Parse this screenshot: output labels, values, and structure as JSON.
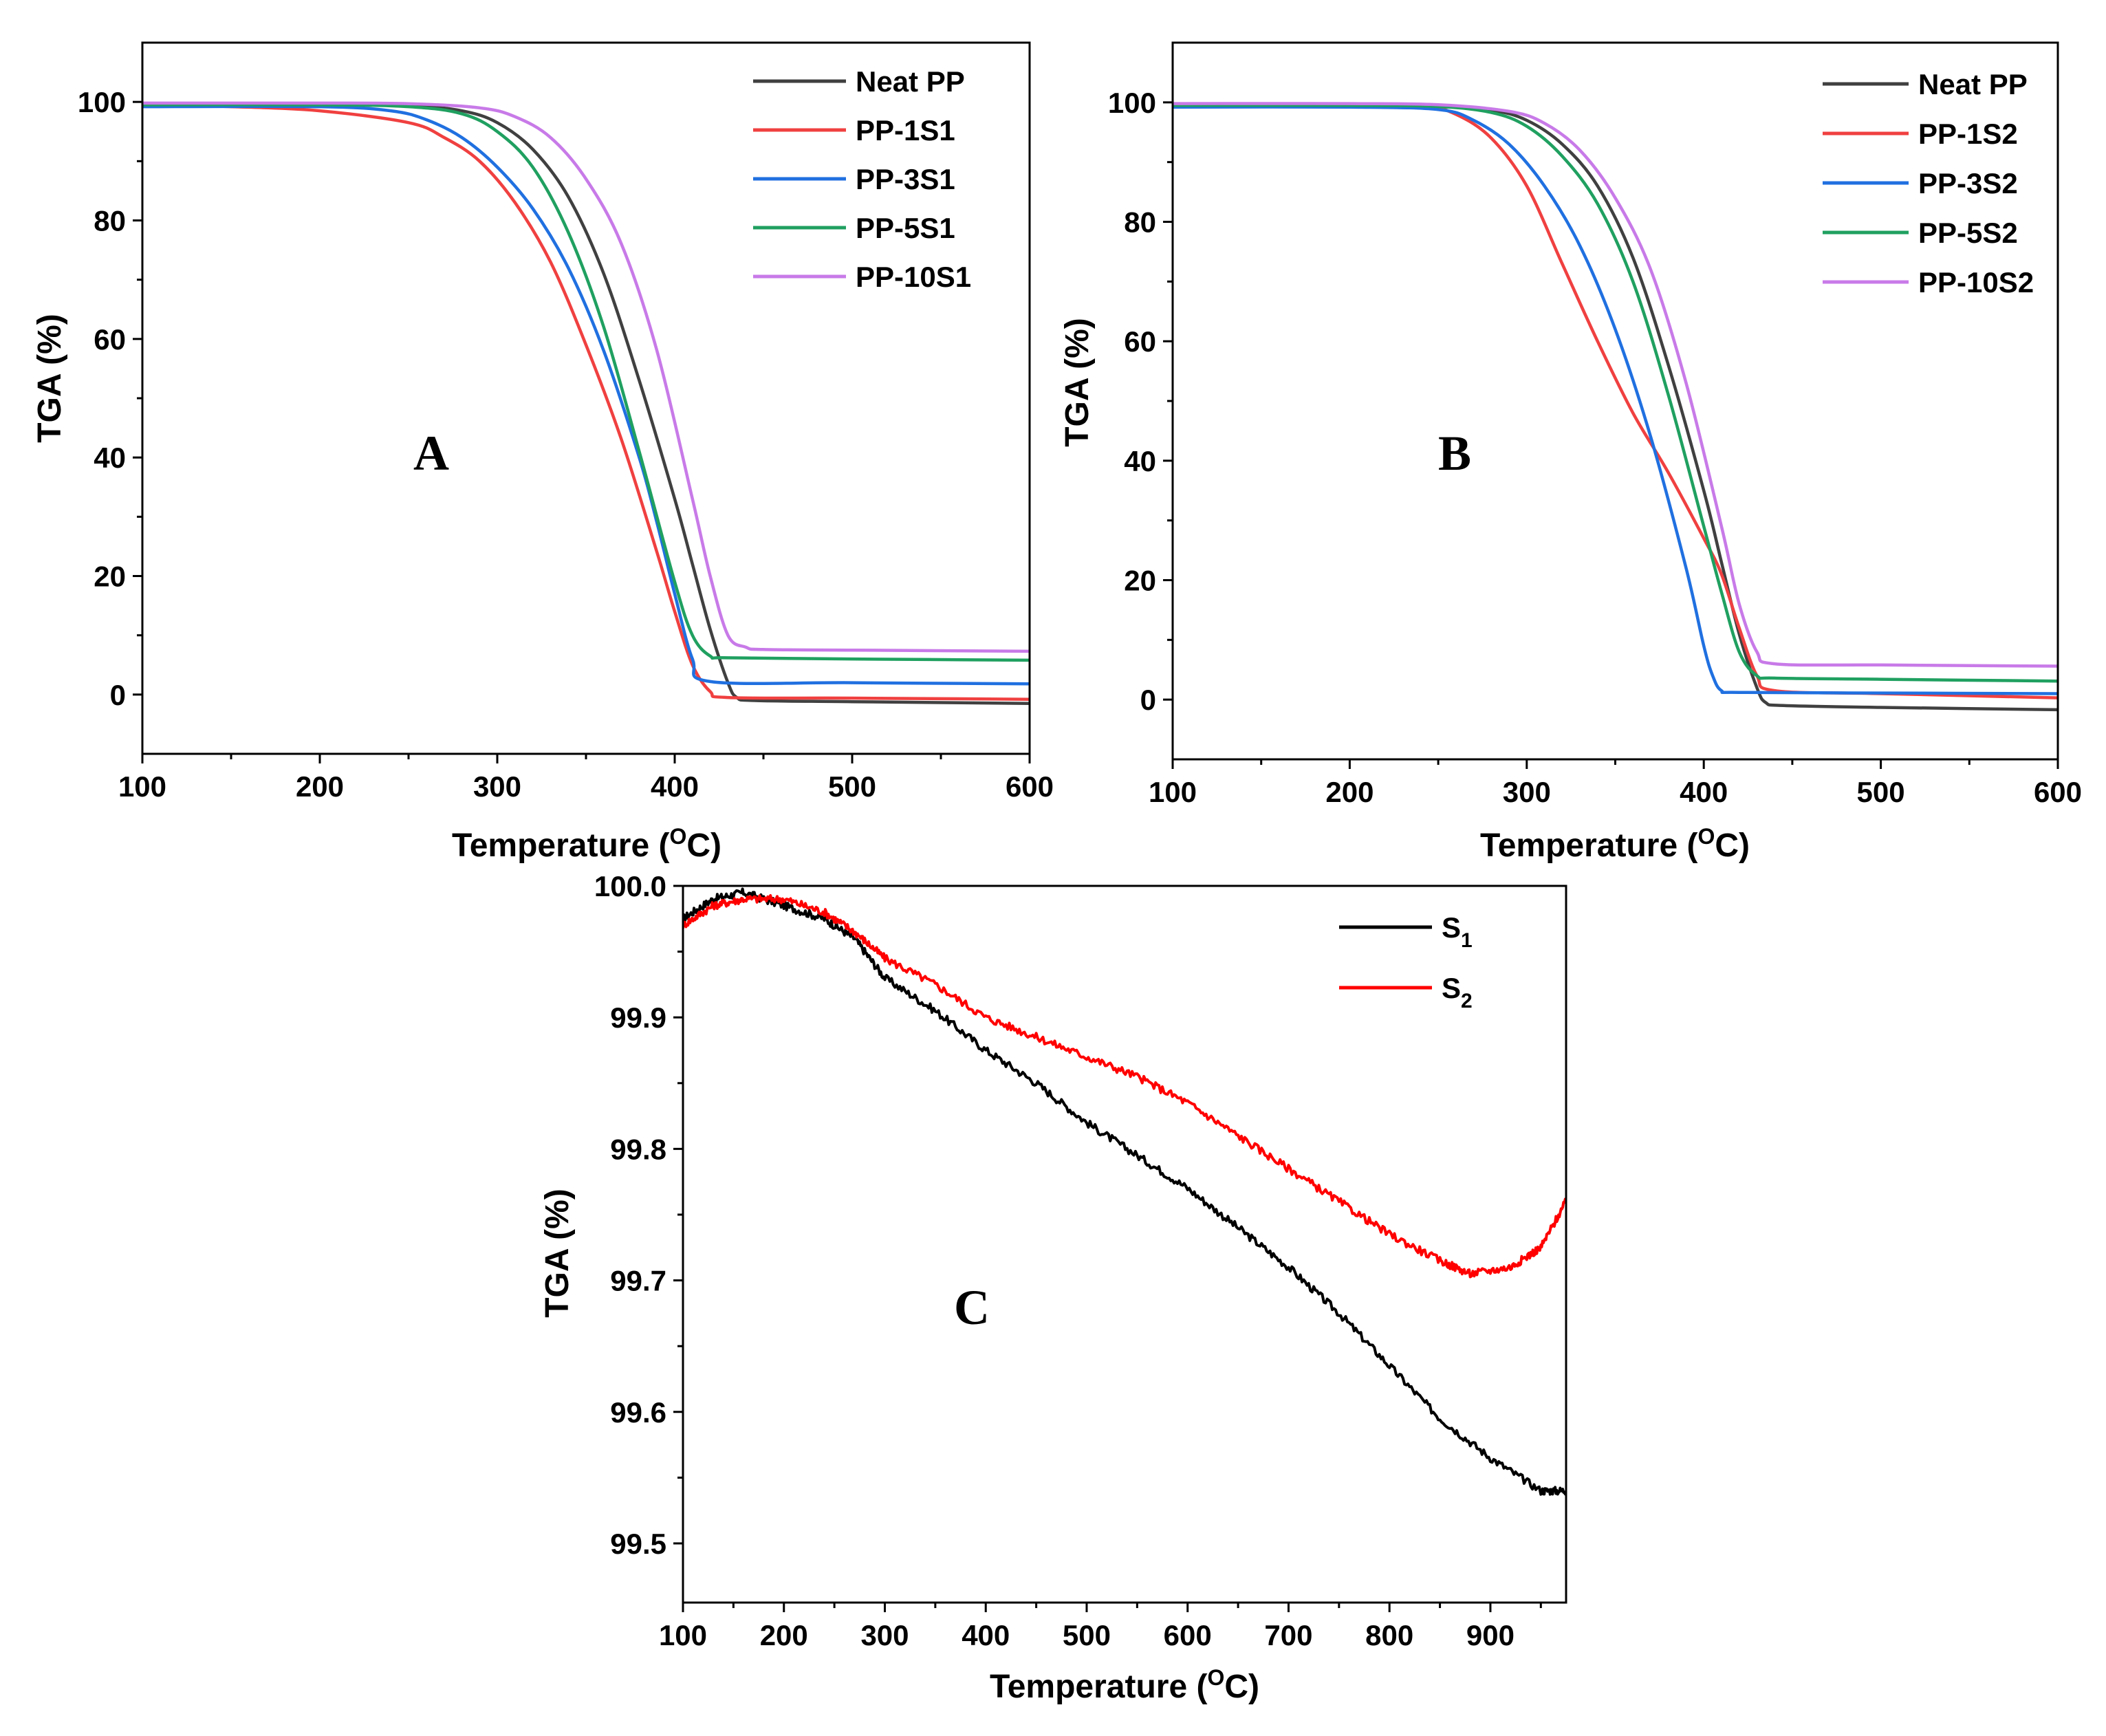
{
  "chart_data": [
    {
      "panel": "A",
      "type": "line",
      "title": "",
      "xlabel": "Temperature (",
      "xlabel_sup": "O",
      "xlabel_tail": "C)",
      "ylabel": "TGA (%)",
      "xlim": [
        100,
        600
      ],
      "ylim": [
        -10,
        110
      ],
      "xticks": [
        100,
        200,
        300,
        400,
        500,
        600
      ],
      "xtick_labels": [
        "100",
        "200",
        "300",
        "400",
        "500",
        "600"
      ],
      "yticks": [
        0,
        20,
        40,
        60,
        80,
        100
      ],
      "ytick_labels": [
        "0",
        "20",
        "40",
        "60",
        "80",
        "100"
      ],
      "legend_position": "top-right",
      "series": [
        {
          "name": "Neat PP",
          "color": "#404040",
          "x": [
            100,
            200,
            250,
            280,
            300,
            320,
            340,
            360,
            380,
            400,
            410,
            420,
            430,
            435,
            445,
            500,
            600
          ],
          "y": [
            99.5,
            99.5,
            99.4,
            98.5,
            96.5,
            92,
            84,
            71,
            53,
            33,
            22,
            11,
            2,
            -0.5,
            -1,
            -1.2,
            -1.5
          ]
        },
        {
          "name": "PP-1S1",
          "color": "#f04040",
          "x": [
            100,
            150,
            200,
            250,
            270,
            290,
            310,
            330,
            350,
            370,
            390,
            400,
            410,
            420,
            430,
            500,
            600
          ],
          "y": [
            99.5,
            99.2,
            98.5,
            96.5,
            94,
            90,
            83,
            73,
            59,
            43,
            24,
            14,
            5,
            0.5,
            -0.5,
            -0.6,
            -0.8
          ]
        },
        {
          "name": "PP-3S1",
          "color": "#2070e0",
          "x": [
            100,
            200,
            240,
            260,
            280,
            300,
            320,
            340,
            360,
            380,
            390,
            400,
            410,
            420,
            500,
            600
          ],
          "y": [
            99.2,
            99.2,
            98.5,
            97,
            94,
            89,
            82,
            72,
            58,
            40,
            29,
            17,
            6,
            2.2,
            2,
            1.8
          ]
        },
        {
          "name": "PP-5S1",
          "color": "#20a060",
          "x": [
            100,
            200,
            250,
            280,
            300,
            320,
            340,
            360,
            380,
            400,
            410,
            420,
            430,
            500,
            600
          ],
          "y": [
            99.5,
            99.5,
            99.2,
            98,
            95,
            89,
            78,
            62,
            41,
            19,
            10,
            6.5,
            6.2,
            6.0,
            5.8
          ]
        },
        {
          "name": "PP-10S1",
          "color": "#c87ae8",
          "x": [
            100,
            200,
            250,
            290,
            310,
            330,
            350,
            370,
            390,
            410,
            420,
            430,
            440,
            450,
            500,
            600
          ],
          "y": [
            99.8,
            99.8,
            99.7,
            99,
            97.5,
            94,
            87,
            76,
            58,
            33,
            20,
            10,
            8,
            7.6,
            7.5,
            7.3
          ]
        }
      ],
      "annotation": "A"
    },
    {
      "panel": "B",
      "type": "line",
      "title": "",
      "xlabel": "Temperature (",
      "xlabel_sup": "O",
      "xlabel_tail": "C)",
      "ylabel": "TGA (%)",
      "xlim": [
        100,
        600
      ],
      "ylim": [
        -10,
        110
      ],
      "xticks": [
        100,
        200,
        300,
        400,
        500,
        600
      ],
      "xtick_labels": [
        "100",
        "200",
        "300",
        "400",
        "500",
        "600"
      ],
      "yticks": [
        0,
        20,
        40,
        60,
        80,
        100
      ],
      "ytick_labels": [
        "0",
        "20",
        "40",
        "60",
        "80",
        "100"
      ],
      "legend_position": "top-right",
      "series": [
        {
          "name": "Neat PP",
          "color": "#404040",
          "x": [
            100,
            200,
            250,
            280,
            300,
            320,
            340,
            360,
            380,
            400,
            410,
            420,
            430,
            435,
            445,
            500,
            600
          ],
          "y": [
            99.5,
            99.5,
            99.4,
            98.7,
            97,
            93,
            86,
            74,
            56,
            35,
            23,
            11,
            2,
            -0.5,
            -1,
            -1.3,
            -1.7
          ]
        },
        {
          "name": "PP-1S2",
          "color": "#f04040",
          "x": [
            100,
            200,
            240,
            260,
            280,
            300,
            320,
            340,
            360,
            380,
            400,
            410,
            420,
            430,
            440,
            500,
            600
          ],
          "y": [
            99.3,
            99.3,
            99.5,
            98,
            94,
            86,
            73,
            60,
            48,
            38,
            27,
            21,
            12,
            4,
            1.5,
            1,
            0.3
          ]
        },
        {
          "name": "PP-3S2",
          "color": "#2070e0",
          "x": [
            100,
            200,
            250,
            270,
            290,
            310,
            330,
            350,
            370,
            390,
            400,
            405,
            410,
            420,
            500,
            600
          ],
          "y": [
            99.2,
            99.2,
            98.8,
            97,
            93,
            86,
            76,
            62,
            44,
            22,
            9,
            4,
            1.5,
            1.2,
            1.1,
            1.0
          ]
        },
        {
          "name": "PP-5S2",
          "color": "#20a060",
          "x": [
            100,
            200,
            250,
            280,
            300,
            320,
            340,
            360,
            380,
            400,
            410,
            420,
            430,
            440,
            500,
            600
          ],
          "y": [
            99.5,
            99.5,
            99.3,
            98.3,
            96,
            91,
            83,
            70,
            51,
            29,
            18,
            8,
            4,
            3.6,
            3.4,
            3.1
          ]
        },
        {
          "name": "PP-10S2",
          "color": "#c87ae8",
          "x": [
            100,
            200,
            250,
            290,
            310,
            330,
            350,
            370,
            390,
            410,
            420,
            430,
            440,
            500,
            600
          ],
          "y": [
            99.8,
            99.8,
            99.6,
            98.5,
            96.5,
            92,
            84,
            72,
            53,
            29,
            16,
            8,
            6,
            5.8,
            5.6
          ]
        }
      ],
      "annotation": "B"
    },
    {
      "panel": "C",
      "type": "line",
      "title": "",
      "xlabel": "Temperature (",
      "xlabel_sup": "O",
      "xlabel_tail": "C)",
      "ylabel": "TGA (%)",
      "xlim": [
        100,
        975
      ],
      "ylim": [
        99.455,
        100.0
      ],
      "xticks": [
        100,
        200,
        300,
        400,
        500,
        600,
        700,
        800,
        900
      ],
      "xtick_labels": [
        "100",
        "200",
        "300",
        "400",
        "500",
        "600",
        "700",
        "800",
        "900"
      ],
      "yticks": [
        99.5,
        99.6,
        99.7,
        99.8,
        99.9,
        100.0
      ],
      "ytick_labels": [
        "99.5",
        "99.6",
        "99.7",
        "99.8",
        "99.9",
        "100.0"
      ],
      "legend_position": "top-right",
      "series": [
        {
          "name": "S",
          "sub": "1",
          "color": "#000000",
          "x": [
            100,
            130,
            160,
            200,
            240,
            270,
            300,
            350,
            400,
            450,
            500,
            550,
            600,
            650,
            700,
            750,
            800,
            850,
            900,
            950,
            975
          ],
          "y": [
            99.975,
            99.99,
            99.995,
            99.985,
            99.975,
            99.96,
            99.93,
            99.905,
            99.875,
            99.85,
            99.82,
            99.795,
            99.77,
            99.74,
            99.71,
            99.675,
            99.635,
            99.595,
            99.565,
            99.54,
            99.54
          ]
        },
        {
          "name": "S",
          "sub": "2",
          "color": "#ff0000",
          "x": [
            100,
            130,
            160,
            200,
            240,
            270,
            300,
            350,
            400,
            450,
            500,
            550,
            600,
            650,
            700,
            750,
            800,
            850,
            880,
            920,
            950,
            975
          ],
          "y": [
            99.97,
            99.985,
            99.99,
            99.99,
            99.98,
            99.965,
            99.945,
            99.925,
            99.9,
            99.885,
            99.87,
            99.855,
            99.835,
            99.81,
            99.785,
            99.76,
            99.735,
            99.715,
            99.705,
            99.71,
            99.725,
            99.76
          ]
        }
      ],
      "annotation": "C"
    }
  ]
}
